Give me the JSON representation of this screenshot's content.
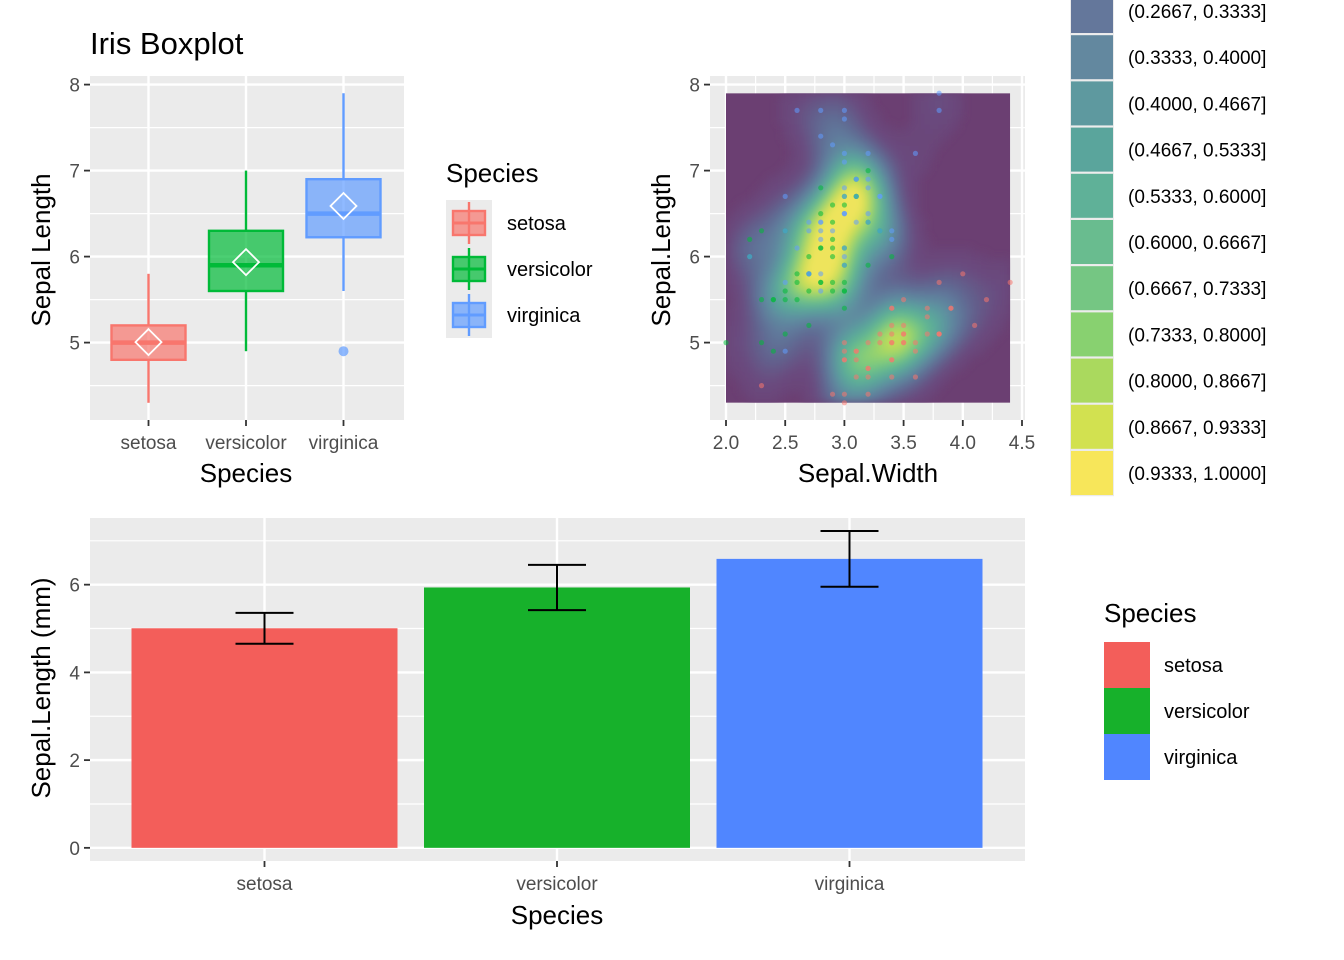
{
  "colors": {
    "panel": "#EBEBEB",
    "grid": "#FFFFFF",
    "tick": "#4D4D4D",
    "setosa": "#F8766D",
    "versicolor": "#00BA38",
    "virginica": "#619CFF",
    "bar_setosa": "#F35E5A",
    "bar_versicolor": "#17B12B",
    "bar_virginica": "#5086FF",
    "density_low": "#440154",
    "density_high": "#FDE725"
  },
  "chart_data": [
    {
      "type": "boxplot",
      "title": "Iris Boxplot",
      "xlabel": "Species",
      "ylabel": "Sepal Length",
      "categories": [
        "setosa",
        "versicolor",
        "virginica"
      ],
      "ylim": [
        4.1,
        8.1
      ],
      "yticks": [
        "5",
        "6",
        "7",
        "8"
      ],
      "boxes": [
        {
          "name": "setosa",
          "min": 4.3,
          "q1": 4.8,
          "median": 5.0,
          "q3": 5.2,
          "max": 5.8,
          "mean": 5.006,
          "outliers": []
        },
        {
          "name": "versicolor",
          "min": 4.9,
          "q1": 5.6,
          "median": 5.9,
          "q3": 6.3,
          "max": 7.0,
          "mean": 5.936,
          "outliers": []
        },
        {
          "name": "virginica",
          "min": 5.6,
          "q1": 6.225,
          "median": 6.5,
          "q3": 6.9,
          "max": 7.9,
          "mean": 6.588,
          "outliers": [
            4.9
          ]
        }
      ],
      "legend": {
        "title": "Species",
        "entries": [
          "setosa",
          "versicolor",
          "virginica"
        ]
      }
    },
    {
      "type": "scatter",
      "subtype": "filled-density-contour",
      "xlabel": "Sepal.Width",
      "ylabel": "Sepal.Length",
      "xlim": [
        1.9,
        4.5
      ],
      "ylim": [
        4.1,
        8.1
      ],
      "xticks": [
        "2.0",
        "2.5",
        "3.0",
        "3.5",
        "4.0",
        "4.5"
      ],
      "yticks": [
        "5",
        "6",
        "7",
        "8"
      ],
      "density_peaks": [
        {
          "x": 2.85,
          "y": 6.1,
          "height": 1.0
        },
        {
          "x": 3.4,
          "y": 5.0,
          "height": 0.55
        }
      ],
      "color_legend": [
        "(0.2667, 0.3333]",
        "(0.3333, 0.4000]",
        "(0.4000, 0.4667]",
        "(0.4667, 0.5333]",
        "(0.5333, 0.6000]",
        "(0.6000, 0.6667]",
        "(0.6667, 0.7333]",
        "(0.7333, 0.8000]",
        "(0.8000, 0.8667]",
        "(0.8667, 0.9333]",
        "(0.9333, 1.0000]"
      ],
      "color_legend_fills": [
        "#64779B",
        "#63889F",
        "#5E999F",
        "#5AA59C",
        "#5FB198",
        "#69BC8F",
        "#75C683",
        "#88D170",
        "#AAD95E",
        "#D2E150",
        "#F7E65A"
      ],
      "series": [
        {
          "name": "setosa",
          "points": [
            [
              3.5,
              5.1
            ],
            [
              3.0,
              4.9
            ],
            [
              3.2,
              4.7
            ],
            [
              3.1,
              4.6
            ],
            [
              3.6,
              5.0
            ],
            [
              3.9,
              5.4
            ],
            [
              3.4,
              4.6
            ],
            [
              3.4,
              5.0
            ],
            [
              2.9,
              4.4
            ],
            [
              3.1,
              4.9
            ],
            [
              3.7,
              5.4
            ],
            [
              3.4,
              4.8
            ],
            [
              3.0,
              4.8
            ],
            [
              3.0,
              4.3
            ],
            [
              4.0,
              5.8
            ],
            [
              4.4,
              5.7
            ],
            [
              3.9,
              5.4
            ],
            [
              3.5,
              5.1
            ],
            [
              3.8,
              5.7
            ],
            [
              3.8,
              5.1
            ],
            [
              3.4,
              5.4
            ],
            [
              3.7,
              5.1
            ],
            [
              3.6,
              4.6
            ],
            [
              3.3,
              5.1
            ],
            [
              3.4,
              4.8
            ],
            [
              3.0,
              5.0
            ],
            [
              3.4,
              5.0
            ],
            [
              3.5,
              5.2
            ],
            [
              3.4,
              5.2
            ],
            [
              3.2,
              4.7
            ],
            [
              3.1,
              4.8
            ],
            [
              3.4,
              5.4
            ],
            [
              4.1,
              5.2
            ],
            [
              4.2,
              5.5
            ],
            [
              3.1,
              4.9
            ],
            [
              3.2,
              5.0
            ],
            [
              3.5,
              5.5
            ],
            [
              3.6,
              4.9
            ],
            [
              3.0,
              4.4
            ],
            [
              3.4,
              5.1
            ],
            [
              3.5,
              5.0
            ],
            [
              2.3,
              4.5
            ],
            [
              3.2,
              4.4
            ],
            [
              3.5,
              5.0
            ],
            [
              3.8,
              5.1
            ],
            [
              3.0,
              4.8
            ],
            [
              3.8,
              5.1
            ],
            [
              3.2,
              4.6
            ],
            [
              3.7,
              5.3
            ],
            [
              3.3,
              5.0
            ]
          ]
        },
        {
          "name": "versicolor",
          "points": [
            [
              3.2,
              7.0
            ],
            [
              3.2,
              6.4
            ],
            [
              3.1,
              6.9
            ],
            [
              2.3,
              5.5
            ],
            [
              2.8,
              6.5
            ],
            [
              2.8,
              5.7
            ],
            [
              3.3,
              6.3
            ],
            [
              2.4,
              4.9
            ],
            [
              2.9,
              6.6
            ],
            [
              2.7,
              5.2
            ],
            [
              2.0,
              5.0
            ],
            [
              3.0,
              5.9
            ],
            [
              2.2,
              6.0
            ],
            [
              2.9,
              6.1
            ],
            [
              2.9,
              5.6
            ],
            [
              3.1,
              6.7
            ],
            [
              3.0,
              5.6
            ],
            [
              2.7,
              5.8
            ],
            [
              2.2,
              6.2
            ],
            [
              2.5,
              5.6
            ],
            [
              3.2,
              5.9
            ],
            [
              2.8,
              6.1
            ],
            [
              2.5,
              6.3
            ],
            [
              2.8,
              6.1
            ],
            [
              2.9,
              6.4
            ],
            [
              3.0,
              6.6
            ],
            [
              2.8,
              6.8
            ],
            [
              3.0,
              6.7
            ],
            [
              2.9,
              6.0
            ],
            [
              2.6,
              5.7
            ],
            [
              2.4,
              5.5
            ],
            [
              2.4,
              5.5
            ],
            [
              2.7,
              5.8
            ],
            [
              2.7,
              6.0
            ],
            [
              3.0,
              5.4
            ],
            [
              3.4,
              6.0
            ],
            [
              3.1,
              6.7
            ],
            [
              2.3,
              6.3
            ],
            [
              3.0,
              5.6
            ],
            [
              2.5,
              5.5
            ],
            [
              2.6,
              5.5
            ],
            [
              3.0,
              6.1
            ],
            [
              2.6,
              5.8
            ],
            [
              2.3,
              5.0
            ],
            [
              2.7,
              5.6
            ],
            [
              3.0,
              5.7
            ],
            [
              2.9,
              5.7
            ],
            [
              2.9,
              6.2
            ],
            [
              2.5,
              5.1
            ],
            [
              2.8,
              5.7
            ]
          ]
        },
        {
          "name": "virginica",
          "points": [
            [
              3.3,
              6.3
            ],
            [
              2.7,
              5.8
            ],
            [
              3.0,
              7.1
            ],
            [
              2.9,
              6.3
            ],
            [
              3.0,
              6.5
            ],
            [
              3.0,
              7.6
            ],
            [
              2.5,
              4.9
            ],
            [
              2.9,
              7.3
            ],
            [
              2.5,
              6.7
            ],
            [
              3.6,
              7.2
            ],
            [
              3.2,
              6.5
            ],
            [
              2.7,
              6.4
            ],
            [
              3.0,
              6.8
            ],
            [
              2.5,
              5.7
            ],
            [
              2.8,
              5.8
            ],
            [
              3.2,
              6.4
            ],
            [
              3.0,
              6.5
            ],
            [
              3.8,
              7.7
            ],
            [
              2.6,
              7.7
            ],
            [
              2.2,
              6.0
            ],
            [
              3.2,
              6.9
            ],
            [
              2.8,
              5.6
            ],
            [
              2.8,
              7.7
            ],
            [
              2.7,
              6.3
            ],
            [
              3.3,
              6.7
            ],
            [
              3.2,
              7.2
            ],
            [
              2.8,
              6.2
            ],
            [
              3.0,
              6.1
            ],
            [
              2.8,
              6.4
            ],
            [
              3.0,
              7.2
            ],
            [
              2.8,
              7.4
            ],
            [
              3.8,
              7.9
            ],
            [
              2.8,
              6.4
            ],
            [
              2.8,
              6.3
            ],
            [
              2.6,
              6.1
            ],
            [
              3.0,
              7.7
            ],
            [
              3.4,
              6.3
            ],
            [
              3.1,
              6.4
            ],
            [
              3.0,
              6.0
            ],
            [
              3.1,
              6.9
            ],
            [
              3.1,
              6.7
            ],
            [
              3.1,
              6.9
            ],
            [
              2.7,
              5.8
            ],
            [
              3.2,
              6.8
            ],
            [
              3.3,
              6.7
            ],
            [
              3.0,
              6.7
            ],
            [
              2.5,
              6.3
            ],
            [
              3.0,
              6.5
            ],
            [
              3.4,
              6.2
            ],
            [
              3.0,
              5.9
            ]
          ]
        }
      ]
    },
    {
      "type": "bar",
      "xlabel": "Species",
      "ylabel": "Sepal.Length (mm)",
      "categories": [
        "setosa",
        "versicolor",
        "virginica"
      ],
      "values": [
        5.006,
        5.936,
        6.588
      ],
      "errors": [
        0.352,
        0.516,
        0.636
      ],
      "ylim": [
        -0.3,
        7.52
      ],
      "yticks": [
        "0",
        "2",
        "4",
        "6"
      ],
      "legend": {
        "title": "Species",
        "entries": [
          "setosa",
          "versicolor",
          "virginica"
        ]
      }
    }
  ]
}
